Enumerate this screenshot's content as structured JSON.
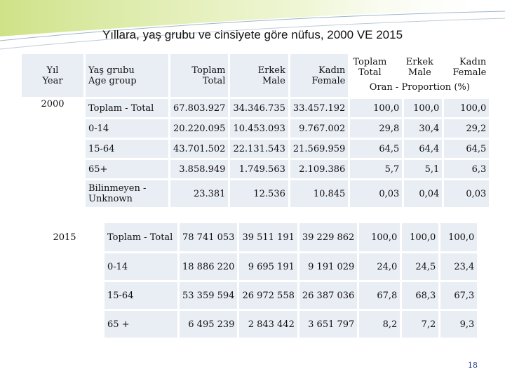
{
  "title": "Yıllara, yaş grubu ve cinsiyete göre nüfus, 2000 VE 2015",
  "headers": {
    "year_tr": "Yıl",
    "year_en": "Year",
    "age_tr": "Yaş grubu",
    "age_en": "Age group",
    "total_tr": "Toplam",
    "total_en": "Total",
    "male_tr": "Erkek",
    "male_en": "Male",
    "female_tr": "Kadın",
    "female_en": "Female",
    "proportion": "Oran - Proportion (%)"
  },
  "t2000": {
    "year": "2000",
    "rows": [
      {
        "age": "Toplam - Total",
        "total": "67.803.927",
        "male": "34.346.735",
        "female": "33.457.192",
        "p_total": "100,0",
        "p_male": "100,0",
        "p_female": "100,0"
      },
      {
        "age": "0-14",
        "total": "20.220.095",
        "male": "10.453.093",
        "female": "9.767.002",
        "p_total": "29,8",
        "p_male": "30,4",
        "p_female": "29,2"
      },
      {
        "age": "15-64",
        "total": "43.701.502",
        "male": "22.131.543",
        "female": "21.569.959",
        "p_total": "64,5",
        "p_male": "64,4",
        "p_female": "64,5"
      },
      {
        "age": "65+",
        "total": "3.858.949",
        "male": "1.749.563",
        "female": "2.109.386",
        "p_total": "5,7",
        "p_male": "5,1",
        "p_female": "6,3"
      },
      {
        "age_line1": "Bilinmeyen -",
        "age_line2": "Unknown",
        "total": "23.381",
        "male": "12.536",
        "female": "10.845",
        "p_total": "0,03",
        "p_male": "0,04",
        "p_female": "0,03"
      }
    ]
  },
  "t2015": {
    "year": "2015",
    "rows": [
      {
        "age": "Toplam - Total",
        "total": "78 741 053",
        "male": "39 511 191",
        "female": "39 229 862",
        "p_total": "100,0",
        "p_male": "100,0",
        "p_female": "100,0"
      },
      {
        "age": "0-14",
        "total": "18 886 220",
        "male": "9 695 191",
        "female": "9 191 029",
        "p_total": "24,0",
        "p_male": "24,5",
        "p_female": "23,4"
      },
      {
        "age": "15-64",
        "total": "53 359 594",
        "male": "26 972 558",
        "female": "26 387 036",
        "p_total": "67,8",
        "p_male": "68,3",
        "p_female": "67,3"
      },
      {
        "age": "65 +",
        "total": "6 495 239",
        "male": "2 843 442",
        "female": "3 651 797",
        "p_total": "8,2",
        "p_male": "7,2",
        "p_female": "9,3"
      }
    ]
  },
  "page_number": "18"
}
